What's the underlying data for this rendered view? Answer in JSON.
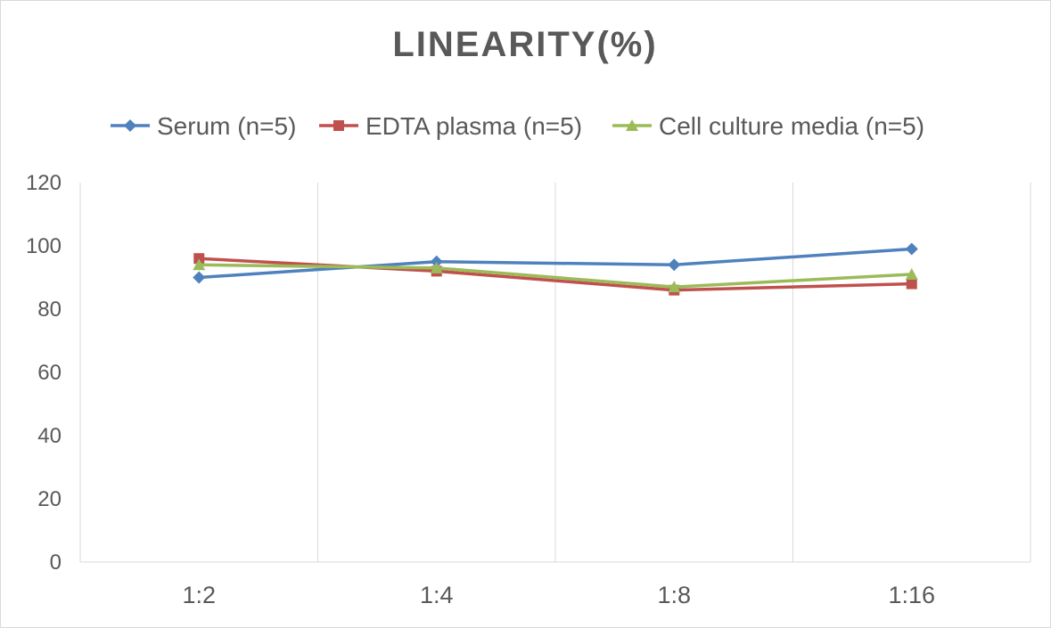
{
  "chart_data": {
    "type": "line",
    "title": "LINEARITY(%)",
    "xlabel": "",
    "ylabel": "",
    "categories": [
      "1:2",
      "1:4",
      "1:8",
      "1:16"
    ],
    "ylim": [
      0,
      120
    ],
    "yticks": [
      0,
      20,
      40,
      60,
      80,
      100,
      120
    ],
    "grid": "vertical",
    "legend_position": "top",
    "series": [
      {
        "name": "Serum (n=5)",
        "values": [
          90,
          95,
          94,
          99
        ],
        "color": "#4f81bd",
        "marker": "diamond"
      },
      {
        "name": "EDTA plasma (n=5)",
        "values": [
          96,
          92,
          86,
          88
        ],
        "color": "#c0504d",
        "marker": "square"
      },
      {
        "name": "Cell culture media (n=5)",
        "values": [
          94,
          93,
          87,
          91
        ],
        "color": "#9bbb59",
        "marker": "triangle"
      }
    ]
  }
}
